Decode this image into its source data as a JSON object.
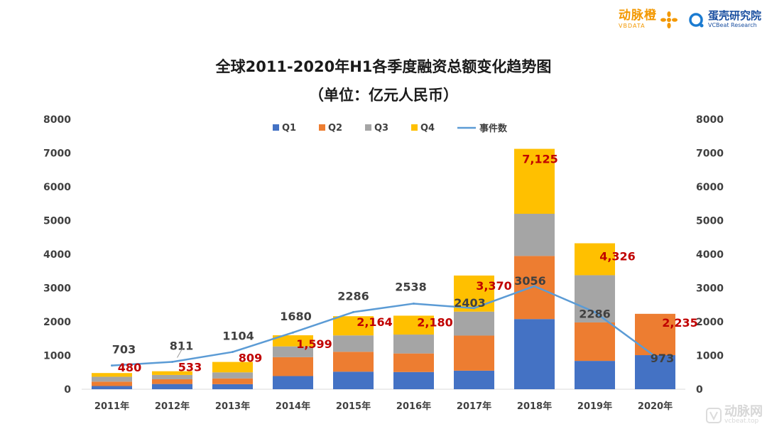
{
  "brand": {
    "vbdata_cn": "动脉橙",
    "vbdata_en": "VBDATA",
    "vcbeat_cn": "蛋壳研究院",
    "vcbeat_en": "VCBeat Research"
  },
  "watermark": {
    "cn": "动脉网",
    "en": "vcbeat.top"
  },
  "colors": {
    "q1": "#4472c4",
    "q2": "#ed7d31",
    "q3": "#a5a5a5",
    "q4": "#ffc000",
    "line": "#5b9bd5",
    "total_label": "#c00000",
    "text": "#404040"
  },
  "chart_data": {
    "type": "bar",
    "stacked": true,
    "title": "全球2011-2020年H1各季度融资总额变化趋势图",
    "subtitle": "（单位：亿元人民币）",
    "categories": [
      "2011年",
      "2012年",
      "2013年",
      "2014年",
      "2015年",
      "2016年",
      "2017年",
      "2018年",
      "2019年",
      "2020年"
    ],
    "series": [
      {
        "name": "Q1",
        "values": [
          95,
          155,
          150,
          390,
          520,
          510,
          550,
          2080,
          840,
          1010
        ]
      },
      {
        "name": "Q2",
        "values": [
          130,
          140,
          170,
          560,
          590,
          550,
          1040,
          1870,
          1140,
          1225
        ]
      },
      {
        "name": "Q3",
        "values": [
          145,
          128,
          180,
          320,
          485,
          560,
          710,
          1250,
          1400,
          0
        ]
      },
      {
        "name": "Q4",
        "values": [
          110,
          110,
          309,
          329,
          569,
          560,
          1070,
          1925,
          946,
          0
        ]
      }
    ],
    "totals": [
      480,
      533,
      809,
      1599,
      2164,
      2180,
      3370,
      7125,
      4326,
      2235
    ],
    "total_labels": [
      "480",
      "533",
      "809",
      "1,599",
      "2,164",
      "2,180",
      "3,370",
      "7,125",
      "4,326",
      "2,235"
    ],
    "line_series": {
      "name": "事件数",
      "values": [
        703,
        811,
        1104,
        1680,
        2286,
        2538,
        2403,
        3056,
        2286,
        973
      ]
    },
    "ylim": [
      0,
      8000
    ],
    "y_ticks": [
      0,
      1000,
      2000,
      3000,
      4000,
      5000,
      6000,
      7000,
      8000
    ],
    "y2lim": [
      0,
      8000
    ],
    "grid": false,
    "legend_position": "top-center"
  }
}
